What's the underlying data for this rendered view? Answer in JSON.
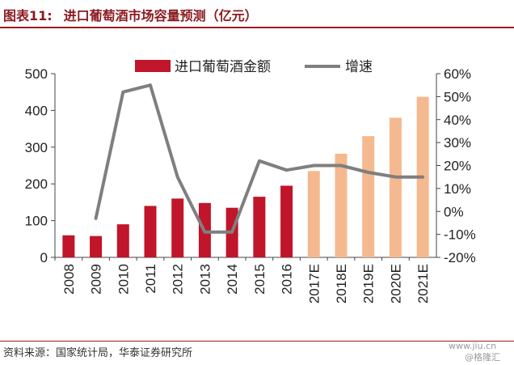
{
  "figure": {
    "label": "图表11:",
    "title": "进口葡萄酒市场容量预测（亿元）"
  },
  "source": "资料来源：国家统计局，华泰证券研究所",
  "watermark": {
    "url": "www.jiu.cn",
    "brand": "@格隆汇"
  },
  "colors": {
    "bar_actual": "#c0152a",
    "bar_forecast": "#f5b98f",
    "line": "#7f7f7f",
    "rule": "#9b1c20"
  },
  "chart_data": {
    "type": "bar",
    "categories": [
      "2008",
      "2009",
      "2010",
      "2011",
      "2012",
      "2013",
      "2014",
      "2015",
      "2016",
      "2017E",
      "2018E",
      "2019E",
      "2020E",
      "2021E"
    ],
    "series": [
      {
        "name": "进口葡萄酒金额",
        "axis": "left",
        "values": [
          60,
          58,
          90,
          140,
          160,
          148,
          135,
          165,
          195,
          235,
          282,
          330,
          380,
          437
        ],
        "forecast_from_index": 9
      },
      {
        "name": "增速",
        "type": "line",
        "axis": "right",
        "values": [
          null,
          -3,
          52,
          55,
          15,
          -9,
          -9,
          22,
          18,
          20,
          20,
          17,
          15,
          15
        ]
      }
    ],
    "ylim_left": [
      0,
      500
    ],
    "yticks_left": [
      "0",
      "100",
      "200",
      "300",
      "400",
      "500"
    ],
    "ylim_right": [
      -20,
      60
    ],
    "yticks_right": [
      "-20%",
      "-10%",
      "0%",
      "10%",
      "20%",
      "30%",
      "40%",
      "50%",
      "60%"
    ],
    "legend": "top-center",
    "grid": false
  }
}
